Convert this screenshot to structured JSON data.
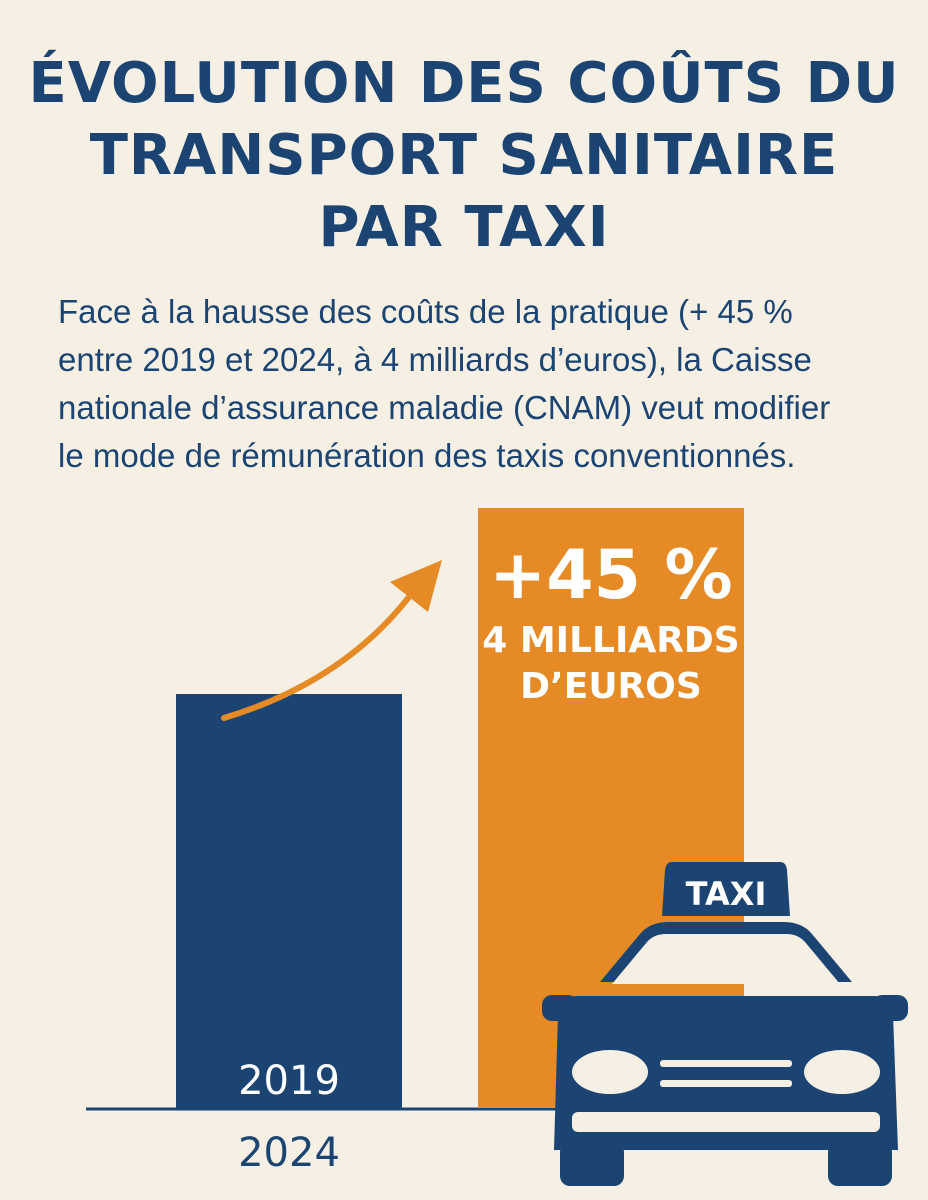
{
  "title_lines": [
    "ÉVOLUTION DES COÛTS DU",
    "TRANSPORT SANITAIRE",
    "PAR TAXI"
  ],
  "subtitle_lines": [
    "Face à la hausse des coûts de la pratique (+ 45 %",
    "entre 2019 et 2024, à 4 milliards d’euros), la Caisse",
    "nationale d’assurance maladie (CNAM) veut modifier",
    "le mode de rémunération des taxis conventionnés."
  ],
  "colors": {
    "background": "#f6f0e4",
    "navy": "#1b4472",
    "orange": "#e58a25",
    "white": "#ffffff"
  },
  "icons": [
    "trend-arrow-icon",
    "taxi-car-icon"
  ],
  "chart_data": {
    "type": "bar",
    "categories": [
      "2019",
      "2024"
    ],
    "values": [
      2.76,
      4
    ],
    "annotations": {
      "change_label": "+45 %",
      "value_label_lines": [
        "4 MILLIARDS",
        "D’EUROS"
      ]
    },
    "taxi_sign": "TAXI",
    "grid": false,
    "legend": "none"
  }
}
